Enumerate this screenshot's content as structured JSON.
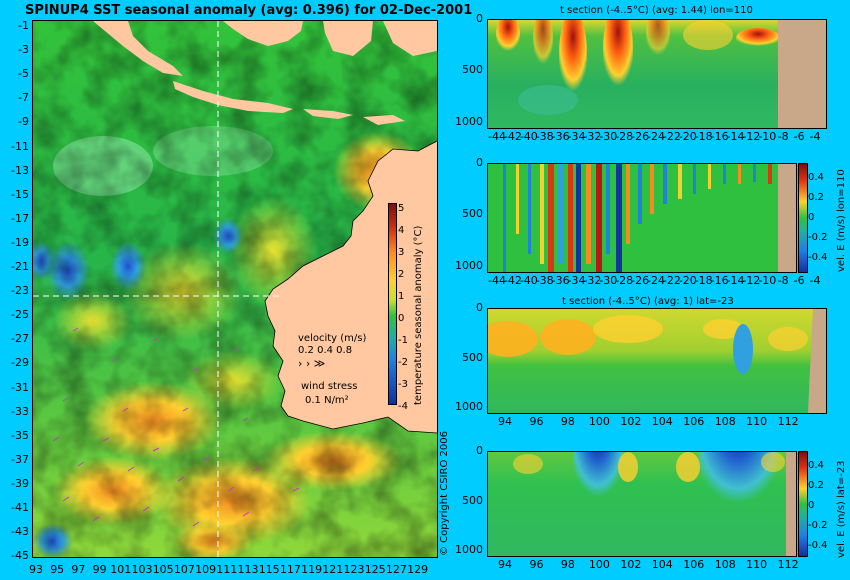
{
  "map": {
    "title": "SPINUP4 SST seasonal anomaly  (avg: 0.396) for 02-Dec-2001",
    "lat_labels": [
      "-1",
      "-3",
      "-5",
      "-7",
      "-9",
      "-11",
      "-13",
      "-15",
      "-17",
      "-19",
      "-21",
      "-23",
      "-25",
      "-27",
      "-29",
      "-31",
      "-33",
      "-35",
      "-37",
      "-39",
      "-41",
      "-43",
      "-45"
    ],
    "lon_labels": [
      "93",
      "95",
      "97",
      "99",
      "101",
      "103",
      "105",
      "107",
      "109",
      "111",
      "113",
      "115",
      "117",
      "119",
      "121",
      "123",
      "125",
      "127",
      "129"
    ],
    "colorbar": {
      "label": "temperature seasonal anomaly (°C)",
      "ticks": [
        "5",
        "4",
        "3",
        "2",
        "1",
        "0",
        "-1",
        "-2",
        "-3",
        "-4"
      ]
    },
    "velocity_legend": {
      "title": "velocity (m/s)",
      "values": "0.2 0.4 0.8"
    },
    "wind_legend": {
      "title": "wind stress",
      "value": "0.1 N/m²"
    },
    "copyright": "© Copyright CSIRO 2006"
  },
  "panels": [
    {
      "title": "t section (-4..5°C) (avg: 1.44) lon=110",
      "x_labels": [
        "-44",
        "-42",
        "-40",
        "-38",
        "-36",
        "-34",
        "-32",
        "-30",
        "-28",
        "-26",
        "-24",
        "-22",
        "-20",
        "-18",
        "-16",
        "-14",
        "-12",
        "-10",
        "-8",
        "-6",
        "-4"
      ],
      "y_labels": [
        "0",
        "500",
        "1000"
      ]
    },
    {
      "title": "",
      "x_labels": [
        "-44",
        "-42",
        "-40",
        "-38",
        "-36",
        "-34",
        "-32",
        "-30",
        "-28",
        "-26",
        "-24",
        "-22",
        "-20",
        "-18",
        "-16",
        "-14",
        "-12",
        "-10",
        "-8",
        "-6",
        "-4"
      ],
      "y_labels": [
        "0",
        "500",
        "1000"
      ],
      "colorbar_label": "vel. E (m/s) lon=110",
      "colorbar_ticks": [
        "0.4",
        "0.2",
        "0",
        "-0.2",
        "-0.4"
      ]
    },
    {
      "title": "t section (-4..5°C) (avg: 1) lat=-23",
      "x_labels": [
        "94",
        "96",
        "98",
        "100",
        "102",
        "104",
        "106",
        "108",
        "110",
        "112"
      ],
      "y_labels": [
        "0",
        "500",
        "1000"
      ]
    },
    {
      "title": "",
      "x_labels": [
        "94",
        "96",
        "98",
        "100",
        "102",
        "104",
        "106",
        "108",
        "110",
        "112"
      ],
      "y_labels": [
        "0",
        "500",
        "1000"
      ],
      "colorbar_label": "vel. E (m/s) lat=-23",
      "colorbar_ticks": [
        "0.4",
        "0.2",
        "0",
        "-0.2",
        "-0.4"
      ]
    }
  ]
}
